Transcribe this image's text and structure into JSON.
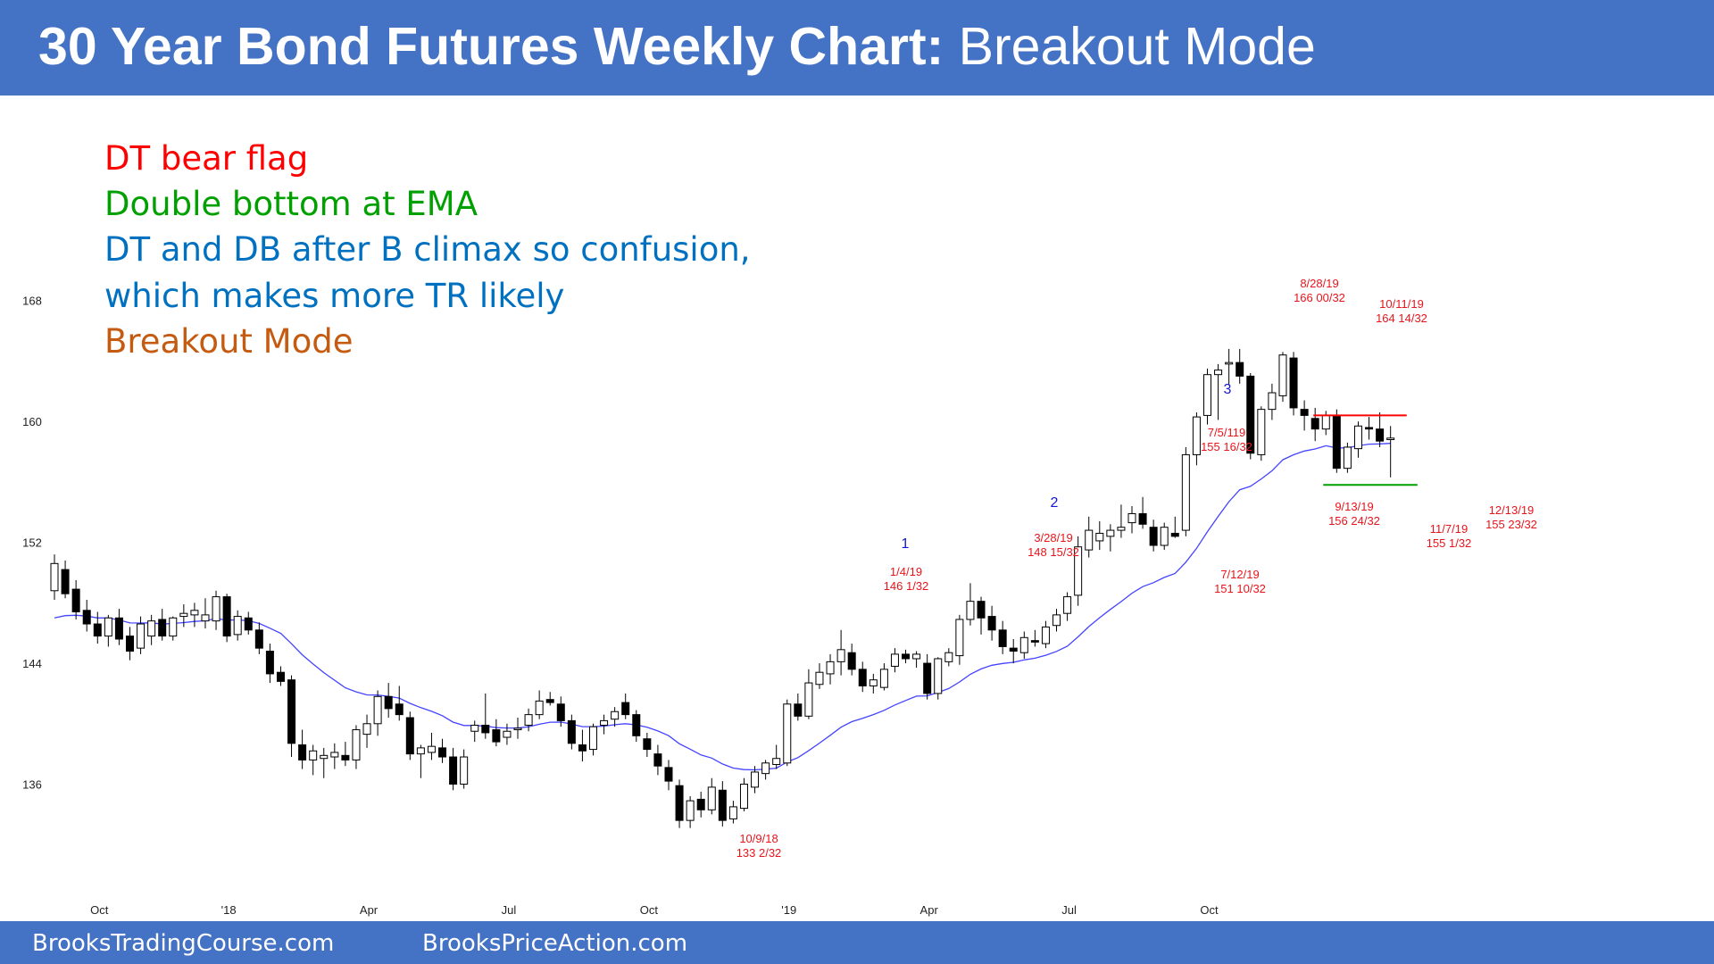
{
  "header": {
    "title_bold": "30 Year Bond Futures Weekly Chart:",
    "title_rest": " Breakout Mode",
    "background": "#4472c4"
  },
  "notes": [
    {
      "text": "DT bear flag",
      "color": "#ff0000"
    },
    {
      "text": "Double bottom at EMA",
      "color": "#00a000"
    },
    {
      "text": "DT and DB after B climax so confusion,",
      "color": "#0070c0"
    },
    {
      "text": "which makes more TR likely",
      "color": "#0070c0"
    },
    {
      "text": "Breakout Mode",
      "color": "#c55a11"
    }
  ],
  "footer": {
    "left": "BrooksTradingCourse.com",
    "right": "BrooksPriceAction.com"
  },
  "chart_data": {
    "type": "candlestick",
    "title": "",
    "interval": "weekly",
    "ylim": [
      130,
      172
    ],
    "y_ticks": [
      136,
      144,
      152,
      160,
      168
    ],
    "x_ticks": [
      "Oct",
      "'18",
      "Apr",
      "Jul",
      "Oct",
      "'19",
      "Apr",
      "Jul",
      "Oct"
    ],
    "x_tick_index": [
      4,
      16,
      29,
      42,
      55,
      68,
      81,
      94,
      107
    ],
    "ema_color": "#4444ff",
    "candles": [
      {
        "o": 148.8,
        "h": 151.2,
        "l": 148.2,
        "c": 150.6
      },
      {
        "o": 150.2,
        "h": 150.8,
        "l": 148.3,
        "c": 148.6
      },
      {
        "o": 148.9,
        "h": 149.5,
        "l": 146.9,
        "c": 147.4
      },
      {
        "o": 147.5,
        "h": 148.2,
        "l": 146.1,
        "c": 146.6
      },
      {
        "o": 146.6,
        "h": 147.4,
        "l": 145.3,
        "c": 145.8
      },
      {
        "o": 145.8,
        "h": 147.2,
        "l": 145.1,
        "c": 147.0
      },
      {
        "o": 147.0,
        "h": 147.6,
        "l": 145.2,
        "c": 145.6
      },
      {
        "o": 145.8,
        "h": 146.4,
        "l": 144.2,
        "c": 144.8
      },
      {
        "o": 145.0,
        "h": 147.1,
        "l": 144.6,
        "c": 146.6
      },
      {
        "o": 145.8,
        "h": 147.2,
        "l": 145.2,
        "c": 146.8
      },
      {
        "o": 146.9,
        "h": 147.6,
        "l": 145.5,
        "c": 145.8
      },
      {
        "o": 145.8,
        "h": 147.1,
        "l": 145.5,
        "c": 147.0
      },
      {
        "o": 147.1,
        "h": 147.9,
        "l": 146.4,
        "c": 147.3
      },
      {
        "o": 147.2,
        "h": 148.0,
        "l": 146.4,
        "c": 147.5
      },
      {
        "o": 146.8,
        "h": 148.3,
        "l": 146.3,
        "c": 147.2
      },
      {
        "o": 146.8,
        "h": 148.8,
        "l": 146.2,
        "c": 148.4
      },
      {
        "o": 148.4,
        "h": 148.6,
        "l": 145.4,
        "c": 145.8
      },
      {
        "o": 145.9,
        "h": 147.5,
        "l": 145.5,
        "c": 147.1
      },
      {
        "o": 147.0,
        "h": 147.4,
        "l": 145.9,
        "c": 146.2
      },
      {
        "o": 146.2,
        "h": 146.7,
        "l": 144.6,
        "c": 145.0
      },
      {
        "o": 144.8,
        "h": 145.3,
        "l": 142.7,
        "c": 143.3
      },
      {
        "o": 143.4,
        "h": 143.8,
        "l": 142.5,
        "c": 142.8
      },
      {
        "o": 142.9,
        "h": 143.2,
        "l": 137.8,
        "c": 138.7
      },
      {
        "o": 138.6,
        "h": 139.6,
        "l": 137.0,
        "c": 137.6
      },
      {
        "o": 137.6,
        "h": 138.6,
        "l": 136.6,
        "c": 138.2
      },
      {
        "o": 137.7,
        "h": 138.4,
        "l": 136.4,
        "c": 137.9
      },
      {
        "o": 137.8,
        "h": 138.7,
        "l": 137.0,
        "c": 138.1
      },
      {
        "o": 137.9,
        "h": 138.8,
        "l": 137.2,
        "c": 137.6
      },
      {
        "o": 137.6,
        "h": 139.9,
        "l": 137.0,
        "c": 139.6
      },
      {
        "o": 139.3,
        "h": 140.6,
        "l": 138.4,
        "c": 140.0
      },
      {
        "o": 140.0,
        "h": 142.2,
        "l": 139.2,
        "c": 141.8
      },
      {
        "o": 141.8,
        "h": 142.7,
        "l": 140.4,
        "c": 141.0
      },
      {
        "o": 141.3,
        "h": 142.5,
        "l": 140.2,
        "c": 140.6
      },
      {
        "o": 140.4,
        "h": 140.8,
        "l": 137.6,
        "c": 138.0
      },
      {
        "o": 138.0,
        "h": 138.6,
        "l": 136.4,
        "c": 138.4
      },
      {
        "o": 138.1,
        "h": 139.4,
        "l": 137.6,
        "c": 138.5
      },
      {
        "o": 138.4,
        "h": 139.0,
        "l": 137.4,
        "c": 137.8
      },
      {
        "o": 137.8,
        "h": 138.4,
        "l": 135.6,
        "c": 136.0
      },
      {
        "o": 136.0,
        "h": 138.3,
        "l": 135.7,
        "c": 137.8
      },
      {
        "o": 139.5,
        "h": 140.2,
        "l": 138.8,
        "c": 139.9
      },
      {
        "o": 139.9,
        "h": 142.0,
        "l": 139.0,
        "c": 139.4
      },
      {
        "o": 139.6,
        "h": 140.3,
        "l": 138.5,
        "c": 138.8
      },
      {
        "o": 139.1,
        "h": 140.0,
        "l": 138.6,
        "c": 139.5
      },
      {
        "o": 139.6,
        "h": 140.4,
        "l": 139.0,
        "c": 139.7
      },
      {
        "o": 139.9,
        "h": 141.0,
        "l": 139.5,
        "c": 140.6
      },
      {
        "o": 140.6,
        "h": 142.2,
        "l": 140.3,
        "c": 141.5
      },
      {
        "o": 141.6,
        "h": 142.1,
        "l": 141.2,
        "c": 141.4
      },
      {
        "o": 141.3,
        "h": 141.8,
        "l": 139.8,
        "c": 140.2
      },
      {
        "o": 140.2,
        "h": 140.6,
        "l": 138.3,
        "c": 138.7
      },
      {
        "o": 138.6,
        "h": 139.6,
        "l": 137.5,
        "c": 138.2
      },
      {
        "o": 138.3,
        "h": 140.0,
        "l": 137.9,
        "c": 139.8
      },
      {
        "o": 139.9,
        "h": 140.6,
        "l": 139.3,
        "c": 140.2
      },
      {
        "o": 140.3,
        "h": 141.1,
        "l": 139.8,
        "c": 140.8
      },
      {
        "o": 141.4,
        "h": 142.0,
        "l": 140.3,
        "c": 140.6
      },
      {
        "o": 140.6,
        "h": 140.9,
        "l": 138.8,
        "c": 139.2
      },
      {
        "o": 139.0,
        "h": 139.4,
        "l": 137.8,
        "c": 138.3
      },
      {
        "o": 138.0,
        "h": 138.6,
        "l": 136.6,
        "c": 137.2
      },
      {
        "o": 137.1,
        "h": 137.6,
        "l": 135.6,
        "c": 136.2
      },
      {
        "o": 135.9,
        "h": 136.3,
        "l": 133.1,
        "c": 133.6
      },
      {
        "o": 133.6,
        "h": 135.2,
        "l": 133.1,
        "c": 134.9
      },
      {
        "o": 135.0,
        "h": 135.5,
        "l": 133.8,
        "c": 134.3
      },
      {
        "o": 134.3,
        "h": 136.4,
        "l": 134.0,
        "c": 135.8
      },
      {
        "o": 135.6,
        "h": 136.2,
        "l": 133.2,
        "c": 133.6
      },
      {
        "o": 133.7,
        "h": 134.9,
        "l": 133.4,
        "c": 134.5
      },
      {
        "o": 134.4,
        "h": 136.4,
        "l": 134.2,
        "c": 136.0
      },
      {
        "o": 135.8,
        "h": 137.2,
        "l": 135.4,
        "c": 136.8
      },
      {
        "o": 136.7,
        "h": 137.6,
        "l": 136.3,
        "c": 137.4
      },
      {
        "o": 137.3,
        "h": 138.6,
        "l": 137.0,
        "c": 137.7
      },
      {
        "o": 137.4,
        "h": 141.6,
        "l": 137.2,
        "c": 141.3
      },
      {
        "o": 141.3,
        "h": 142.0,
        "l": 140.2,
        "c": 140.5
      },
      {
        "o": 140.5,
        "h": 143.6,
        "l": 140.3,
        "c": 142.7
      },
      {
        "o": 142.6,
        "h": 144.0,
        "l": 142.3,
        "c": 143.4
      },
      {
        "o": 143.3,
        "h": 144.6,
        "l": 142.6,
        "c": 144.1
      },
      {
        "o": 144.1,
        "h": 146.2,
        "l": 143.2,
        "c": 144.9
      },
      {
        "o": 144.7,
        "h": 145.3,
        "l": 143.2,
        "c": 143.6
      },
      {
        "o": 143.6,
        "h": 144.1,
        "l": 142.1,
        "c": 142.5
      },
      {
        "o": 142.5,
        "h": 143.3,
        "l": 142.0,
        "c": 142.9
      },
      {
        "o": 142.4,
        "h": 144.0,
        "l": 142.2,
        "c": 143.6
      },
      {
        "o": 143.8,
        "h": 145.0,
        "l": 143.4,
        "c": 144.6
      },
      {
        "o": 144.6,
        "h": 144.9,
        "l": 144.0,
        "c": 144.3
      },
      {
        "o": 144.3,
        "h": 144.8,
        "l": 143.7,
        "c": 144.6
      },
      {
        "o": 144.0,
        "h": 144.6,
        "l": 141.6,
        "c": 142.0
      },
      {
        "o": 142.0,
        "h": 144.4,
        "l": 141.6,
        "c": 144.3
      },
      {
        "o": 144.1,
        "h": 145.0,
        "l": 143.8,
        "c": 144.7
      },
      {
        "o": 144.5,
        "h": 147.2,
        "l": 143.9,
        "c": 146.9
      },
      {
        "o": 146.9,
        "h": 149.3,
        "l": 146.5,
        "c": 148.1
      },
      {
        "o": 148.1,
        "h": 148.4,
        "l": 145.9,
        "c": 147.0
      },
      {
        "o": 147.1,
        "h": 147.8,
        "l": 145.5,
        "c": 146.2
      },
      {
        "o": 146.2,
        "h": 146.8,
        "l": 144.6,
        "c": 145.1
      },
      {
        "o": 145.0,
        "h": 145.6,
        "l": 144.0,
        "c": 144.8
      },
      {
        "o": 144.7,
        "h": 146.1,
        "l": 144.3,
        "c": 145.7
      },
      {
        "o": 145.5,
        "h": 146.2,
        "l": 145.1,
        "c": 145.4
      },
      {
        "o": 145.3,
        "h": 146.8,
        "l": 145.0,
        "c": 146.4
      },
      {
        "o": 146.5,
        "h": 147.6,
        "l": 146.1,
        "c": 147.2
      },
      {
        "o": 147.3,
        "h": 148.7,
        "l": 146.8,
        "c": 148.4
      },
      {
        "o": 148.5,
        "h": 152.4,
        "l": 147.8,
        "c": 151.7
      },
      {
        "o": 151.5,
        "h": 153.7,
        "l": 151.0,
        "c": 152.8
      },
      {
        "o": 152.1,
        "h": 153.4,
        "l": 151.5,
        "c": 152.6
      },
      {
        "o": 152.4,
        "h": 153.2,
        "l": 151.4,
        "c": 152.8
      },
      {
        "o": 152.8,
        "h": 154.5,
        "l": 152.3,
        "c": 153.0
      },
      {
        "o": 153.3,
        "h": 154.4,
        "l": 152.6,
        "c": 153.9
      },
      {
        "o": 153.9,
        "h": 155.0,
        "l": 152.9,
        "c": 153.2
      },
      {
        "o": 153.0,
        "h": 153.5,
        "l": 151.4,
        "c": 151.8
      },
      {
        "o": 151.8,
        "h": 153.3,
        "l": 151.5,
        "c": 153.0
      },
      {
        "o": 152.6,
        "h": 153.7,
        "l": 152.3,
        "c": 152.4
      },
      {
        "o": 152.8,
        "h": 158.3,
        "l": 152.4,
        "c": 157.8
      },
      {
        "o": 157.8,
        "h": 160.6,
        "l": 157.1,
        "c": 160.3
      },
      {
        "o": 160.4,
        "h": 163.5,
        "l": 159.8,
        "c": 163.1
      },
      {
        "o": 163.1,
        "h": 163.8,
        "l": 160.1,
        "c": 163.4
      },
      {
        "o": 163.8,
        "h": 164.8,
        "l": 162.4,
        "c": 163.9
      },
      {
        "o": 163.9,
        "h": 164.8,
        "l": 162.5,
        "c": 163.0
      },
      {
        "o": 163.0,
        "h": 163.2,
        "l": 157.5,
        "c": 157.9
      },
      {
        "o": 157.8,
        "h": 161.0,
        "l": 157.4,
        "c": 160.8
      },
      {
        "o": 160.8,
        "h": 162.5,
        "l": 160.1,
        "c": 161.9
      },
      {
        "o": 161.7,
        "h": 164.6,
        "l": 161.3,
        "c": 164.4
      },
      {
        "o": 164.2,
        "h": 164.6,
        "l": 160.4,
        "c": 160.9
      },
      {
        "o": 160.8,
        "h": 161.4,
        "l": 159.4,
        "c": 160.4
      },
      {
        "o": 160.2,
        "h": 160.9,
        "l": 158.7,
        "c": 159.5
      },
      {
        "o": 159.5,
        "h": 160.7,
        "l": 159.1,
        "c": 160.4
      },
      {
        "o": 160.4,
        "h": 160.8,
        "l": 156.6,
        "c": 156.9
      },
      {
        "o": 156.9,
        "h": 158.6,
        "l": 156.6,
        "c": 158.3
      },
      {
        "o": 158.2,
        "h": 160.0,
        "l": 157.6,
        "c": 159.7
      },
      {
        "o": 159.6,
        "h": 160.3,
        "l": 158.8,
        "c": 159.5
      },
      {
        "o": 159.5,
        "h": 160.6,
        "l": 158.3,
        "c": 158.7
      },
      {
        "o": 158.8,
        "h": 159.7,
        "l": 156.3,
        "c": 158.9
      }
    ],
    "annotations": [
      {
        "text": [
          "8/28/19",
          "166 00/32"
        ],
        "color": "#e8141b"
      },
      {
        "text": [
          "10/11/19",
          "164 14/32"
        ],
        "color": "#e8141b"
      },
      {
        "text": [
          "7/5/119",
          "155 16/32"
        ],
        "color": "#e8141b"
      },
      {
        "text": [
          "3/28/19",
          "148 15/32"
        ],
        "color": "#e8141b"
      },
      {
        "text": [
          "1/4/19",
          "146 1/32"
        ],
        "color": "#e8141b"
      },
      {
        "text": [
          "7/12/19",
          "151 10/32"
        ],
        "color": "#e8141b"
      },
      {
        "text": [
          "9/13/19",
          "156 24/32"
        ],
        "color": "#e8141b"
      },
      {
        "text": [
          "11/7/19",
          "155 1/32"
        ],
        "color": "#e8141b"
      },
      {
        "text": [
          "12/13/19",
          "155 23/32"
        ],
        "color": "#e8141b"
      },
      {
        "text": [
          "10/9/18",
          "133 2/32"
        ],
        "color": "#e8141b"
      }
    ],
    "legs": [
      "1",
      "2",
      "3"
    ],
    "lines": [
      {
        "name": "double-top-line",
        "color": "#ff0000",
        "y": 160.4
      },
      {
        "name": "double-bottom-line",
        "color": "#00a000",
        "y": 155.8
      }
    ]
  }
}
